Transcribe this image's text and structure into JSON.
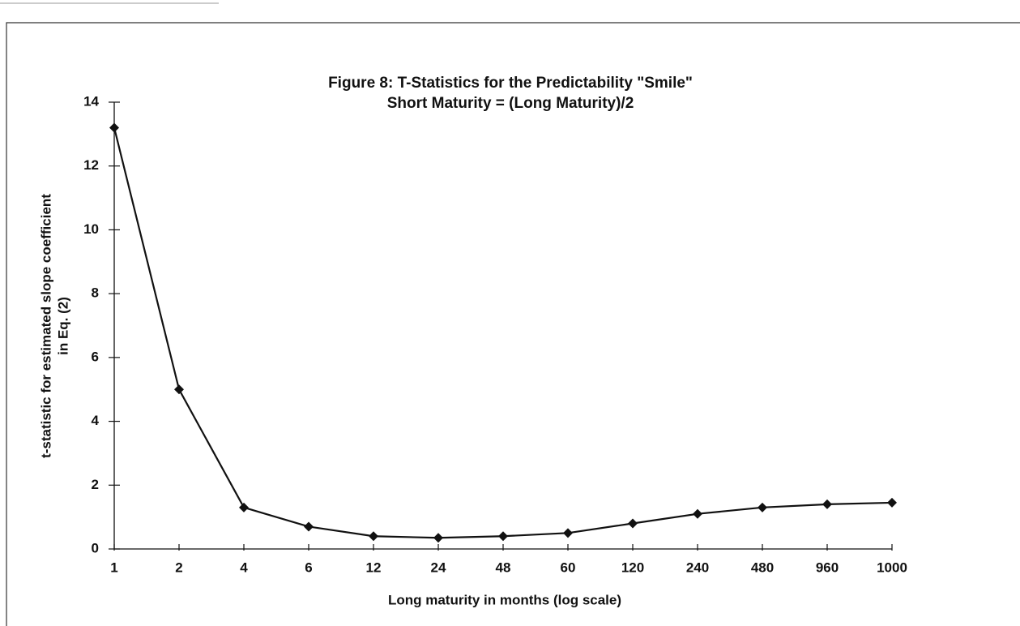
{
  "chart_data": {
    "type": "line",
    "title": "Figure 8:  T-Statistics for the Predictability \"Smile\"",
    "subtitle": "Short Maturity = (Long Maturity)/2",
    "ylabel": [
      "t-statistic for estimated slope coefficient",
      "in Eq. (2)"
    ],
    "xlabel": "Long maturity in months (log scale)",
    "categories": [
      "1",
      "2",
      "4",
      "6",
      "12",
      "24",
      "48",
      "60",
      "120",
      "240",
      "480",
      "960",
      "1000"
    ],
    "values": [
      13.2,
      5.0,
      1.3,
      0.7,
      0.4,
      0.35,
      0.4,
      0.5,
      0.8,
      1.1,
      1.3,
      1.4,
      1.45
    ],
    "color": "#111111",
    "marker": "diamond",
    "grid": false,
    "ylim": [
      0,
      14
    ],
    "yticks": [
      0,
      2,
      4,
      6,
      8,
      10,
      12,
      14
    ]
  }
}
